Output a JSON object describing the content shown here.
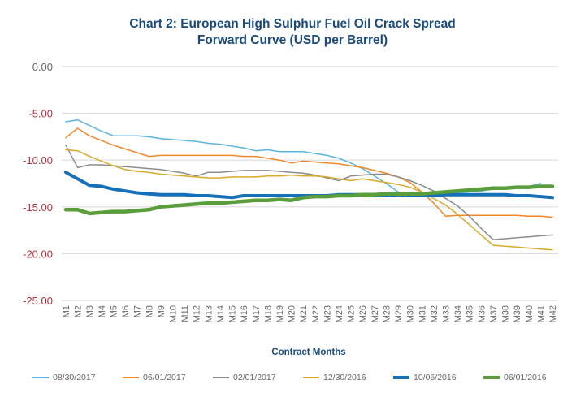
{
  "chart_data": {
    "type": "line",
    "title_line1": "Chart 2: European High Sulphur Fuel Oil Crack Spread",
    "title_line2": "Forward Curve (USD per Barrel)",
    "xlabel": "Contract Months",
    "ylabel": "",
    "ylim": [
      -25,
      0
    ],
    "yticks": [
      0,
      -5,
      -10,
      -15,
      -20,
      -25
    ],
    "ytick_labels": [
      "0.00",
      "-5.00",
      "-10.00",
      "-15.00",
      "-20.00",
      "-25.00"
    ],
    "ytick_colors": [
      "#666666",
      "#b0343f",
      "#b0343f",
      "#b0343f",
      "#b0343f",
      "#b0343f"
    ],
    "grid": true,
    "legend_position": "bottom",
    "categories": [
      "M1",
      "M2",
      "M3",
      "M4",
      "M5",
      "M6",
      "M7",
      "M8",
      "M9",
      "M10",
      "M11",
      "M12",
      "M13",
      "M14",
      "M15",
      "M16",
      "M17",
      "M18",
      "M19",
      "M20",
      "M21",
      "M22",
      "M23",
      "M24",
      "M25",
      "M26",
      "M27",
      "M28",
      "M29",
      "M30",
      "M31",
      "M32",
      "M33",
      "M34",
      "M35",
      "M36",
      "M37",
      "M38",
      "M39",
      "M40",
      "M41",
      "M42"
    ],
    "series": [
      {
        "name": "08/30/2017",
        "color": "#5bb4e0",
        "values": [
          -5.9,
          -5.7,
          -6.3,
          -6.9,
          -7.4,
          -7.4,
          -7.4,
          -7.5,
          -7.7,
          -7.8,
          -7.9,
          -8.0,
          -8.2,
          -8.3,
          -8.5,
          -8.7,
          -9.0,
          -8.9,
          -9.1,
          -9.1,
          -9.1,
          -9.3,
          -9.5,
          -9.8,
          -10.3,
          -10.9,
          -11.7,
          -12.5,
          -13.4,
          -13.8,
          -13.7,
          -13.6,
          -13.6,
          -13.5,
          -13.4,
          -13.3,
          -13.1,
          -13.0,
          -12.9,
          -12.8,
          -12.5,
          null
        ]
      },
      {
        "name": "06/01/2017",
        "color": "#f0882a",
        "values": [
          -7.6,
          -6.6,
          -7.4,
          -7.9,
          -8.4,
          -8.8,
          -9.2,
          -9.6,
          -9.5,
          -9.5,
          -9.5,
          -9.5,
          -9.5,
          -9.5,
          -9.5,
          -9.6,
          -9.6,
          -9.8,
          -10.0,
          -10.3,
          -10.1,
          -10.2,
          -10.3,
          -10.4,
          -10.6,
          -10.8,
          -11.1,
          -11.4,
          -11.8,
          -12.4,
          -13.4,
          -14.6,
          -16.0,
          -15.9,
          -15.9,
          -15.9,
          -15.9,
          -15.9,
          -15.9,
          -16.0,
          -16.0,
          -16.1
        ]
      },
      {
        "name": "02/01/2017",
        "color": "#8c8c8c",
        "values": [
          -8.4,
          -10.8,
          -10.5,
          -10.5,
          -10.6,
          -10.7,
          -10.8,
          -10.9,
          -11.0,
          -11.2,
          -11.4,
          -11.7,
          -11.3,
          -11.3,
          -11.2,
          -11.1,
          -11.1,
          -11.1,
          -11.2,
          -11.3,
          -11.4,
          -11.6,
          -11.9,
          -12.2,
          -11.7,
          -11.6,
          -11.5,
          -11.5,
          -11.8,
          -12.2,
          -12.7,
          -13.3,
          -14.1,
          -14.9,
          -16.0,
          -17.3,
          -18.5,
          -18.4,
          -18.3,
          -18.2,
          -18.1,
          -18.0
        ]
      },
      {
        "name": "12/30/2016",
        "color": "#d9a92c",
        "values": [
          -8.9,
          -9.0,
          -9.6,
          -10.1,
          -10.6,
          -11.0,
          -11.2,
          -11.3,
          -11.5,
          -11.6,
          -11.7,
          -11.8,
          -11.9,
          -11.9,
          -11.8,
          -11.8,
          -11.8,
          -11.7,
          -11.7,
          -11.6,
          -11.7,
          -11.7,
          -11.8,
          -12.0,
          -12.2,
          -12.0,
          -12.2,
          -12.4,
          -12.6,
          -12.9,
          -13.4,
          -14.1,
          -14.8,
          -15.8,
          -16.9,
          -18.0,
          -19.1,
          -19.2,
          -19.3,
          -19.4,
          -19.5,
          -19.6
        ]
      },
      {
        "name": "10/06/2016",
        "color": "#1570b8",
        "values": [
          -11.3,
          -12.0,
          -12.7,
          -12.8,
          -13.1,
          -13.3,
          -13.5,
          -13.6,
          -13.7,
          -13.7,
          -13.7,
          -13.8,
          -13.8,
          -13.9,
          -14.0,
          -13.8,
          -13.8,
          -13.8,
          -13.8,
          -13.8,
          -13.8,
          -13.8,
          -13.8,
          -13.7,
          -13.7,
          -13.7,
          -13.8,
          -13.8,
          -13.7,
          -13.8,
          -13.8,
          -13.8,
          -13.7,
          -13.7,
          -13.7,
          -13.7,
          -13.7,
          -13.7,
          -13.8,
          -13.8,
          -13.9,
          -14.0
        ]
      },
      {
        "name": "06/01/2016",
        "color": "#5a9e3c",
        "values": [
          -15.3,
          -15.3,
          -15.7,
          -15.6,
          -15.5,
          -15.5,
          -15.4,
          -15.3,
          -15.0,
          -14.9,
          -14.8,
          -14.7,
          -14.6,
          -14.6,
          -14.5,
          -14.4,
          -14.3,
          -14.3,
          -14.2,
          -14.3,
          -14.0,
          -13.9,
          -13.9,
          -13.8,
          -13.8,
          -13.7,
          -13.7,
          -13.6,
          -13.6,
          -13.6,
          -13.6,
          -13.5,
          -13.4,
          -13.3,
          -13.2,
          -13.1,
          -13.0,
          -13.0,
          -12.9,
          -12.9,
          -12.8,
          -12.8
        ]
      }
    ]
  }
}
